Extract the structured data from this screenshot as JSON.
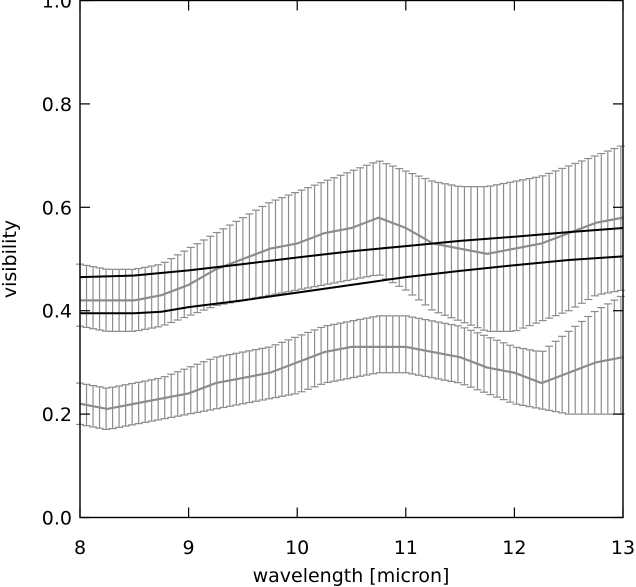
{
  "chart_data": {
    "type": "line",
    "title": "",
    "xlabel": "wavelength [micron]",
    "ylabel": "visibility",
    "xlim": [
      8,
      13
    ],
    "ylim": [
      0.0,
      1.0
    ],
    "xticks": [
      8,
      9,
      10,
      11,
      12,
      13
    ],
    "yticks": [
      0.0,
      0.2,
      0.4,
      0.6,
      0.8,
      1.0
    ],
    "xtick_labels": [
      "8",
      "9",
      "10",
      "11",
      "12",
      "13"
    ],
    "ytick_labels": [
      "0.0",
      "0.2",
      "0.4",
      "0.6",
      "0.8",
      "1.0"
    ],
    "grid": false,
    "colors": {
      "model": "#000000",
      "measured": "#8c8c8c",
      "axes": "#000000"
    },
    "x": [
      8.0,
      8.25,
      8.5,
      8.75,
      9.0,
      9.25,
      9.5,
      9.75,
      10.0,
      10.25,
      10.5,
      10.75,
      11.0,
      11.25,
      11.5,
      11.75,
      12.0,
      12.25,
      12.5,
      12.75,
      13.0
    ],
    "measured_series": [
      {
        "values": [
          0.42,
          0.42,
          0.42,
          0.43,
          0.45,
          0.48,
          0.5,
          0.52,
          0.53,
          0.55,
          0.56,
          0.58,
          0.56,
          0.53,
          0.52,
          0.51,
          0.52,
          0.53,
          0.55,
          0.57,
          0.58
        ],
        "err_lower": [
          0.37,
          0.36,
          0.36,
          0.37,
          0.39,
          0.41,
          0.42,
          0.43,
          0.44,
          0.45,
          0.46,
          0.47,
          0.44,
          0.4,
          0.38,
          0.36,
          0.36,
          0.38,
          0.4,
          0.43,
          0.44
        ],
        "err_upper": [
          0.49,
          0.48,
          0.48,
          0.49,
          0.52,
          0.55,
          0.58,
          0.61,
          0.63,
          0.65,
          0.67,
          0.69,
          0.67,
          0.65,
          0.64,
          0.64,
          0.65,
          0.66,
          0.68,
          0.7,
          0.72
        ]
      },
      {
        "values": [
          0.22,
          0.21,
          0.22,
          0.23,
          0.24,
          0.26,
          0.27,
          0.28,
          0.3,
          0.32,
          0.33,
          0.33,
          0.33,
          0.32,
          0.31,
          0.29,
          0.28,
          0.26,
          0.28,
          0.3,
          0.31
        ],
        "err_lower": [
          0.18,
          0.17,
          0.18,
          0.19,
          0.2,
          0.21,
          0.22,
          0.23,
          0.24,
          0.26,
          0.27,
          0.28,
          0.28,
          0.27,
          0.26,
          0.24,
          0.22,
          0.21,
          0.2,
          0.2,
          0.2
        ],
        "err_upper": [
          0.26,
          0.25,
          0.26,
          0.27,
          0.29,
          0.31,
          0.32,
          0.33,
          0.35,
          0.37,
          0.38,
          0.39,
          0.39,
          0.38,
          0.37,
          0.35,
          0.33,
          0.32,
          0.36,
          0.4,
          0.43
        ]
      }
    ],
    "model_series": [
      {
        "x": [
          8.0,
          8.5,
          9.0,
          9.5,
          10.0,
          10.5,
          11.0,
          11.5,
          12.0,
          12.5,
          13.0
        ],
        "values": [
          0.465,
          0.468,
          0.478,
          0.49,
          0.503,
          0.515,
          0.525,
          0.535,
          0.543,
          0.552,
          0.56
        ]
      },
      {
        "x": [
          8.0,
          8.5,
          8.75,
          9.0,
          9.5,
          10.0,
          10.5,
          11.0,
          11.5,
          12.0,
          12.5,
          13.0
        ],
        "values": [
          0.395,
          0.395,
          0.398,
          0.407,
          0.42,
          0.435,
          0.45,
          0.465,
          0.477,
          0.488,
          0.498,
          0.505
        ]
      }
    ]
  }
}
